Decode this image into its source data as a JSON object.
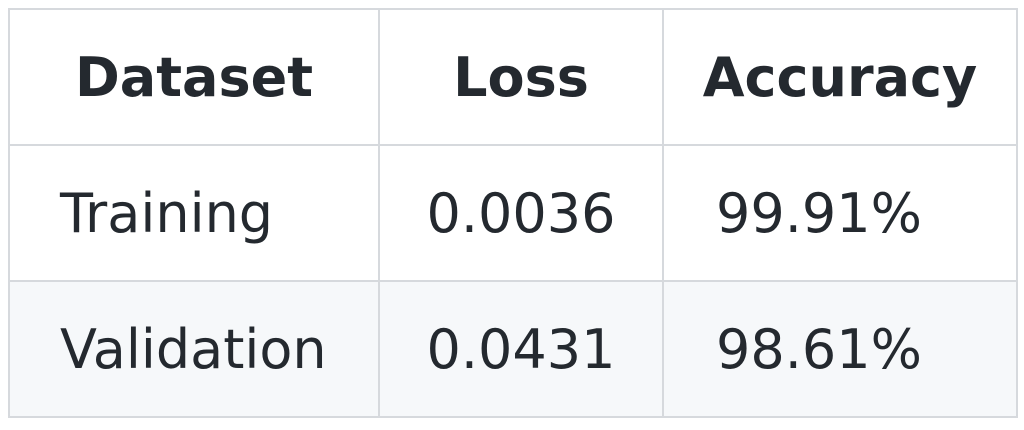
{
  "table": {
    "headers": [
      "Dataset",
      "Loss",
      "Accuracy"
    ],
    "rows": [
      [
        "Training",
        "0.0036",
        "99.91%"
      ],
      [
        "Validation",
        "0.0431",
        "98.61%"
      ]
    ]
  },
  "colors": {
    "border": "#d6d9dd",
    "text": "#24292f",
    "alt_row_background": "#f6f8fa",
    "background": "#ffffff"
  }
}
